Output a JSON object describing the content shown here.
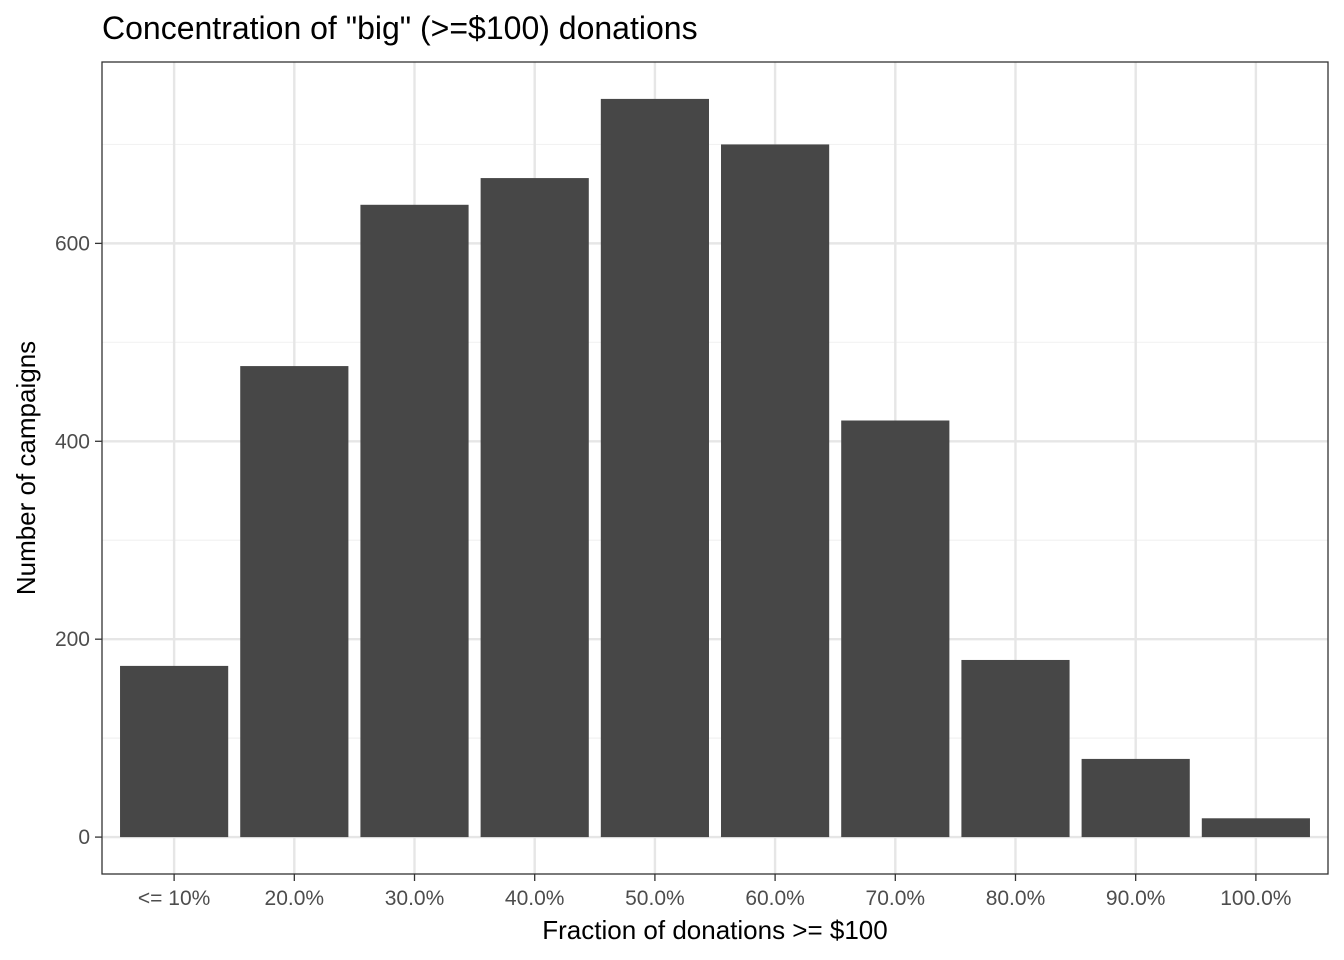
{
  "chart_data": {
    "type": "bar",
    "title": "Concentration of \"big\" (>=$100) donations",
    "xlabel": "Fraction of donations >= $100",
    "ylabel": "Number of campaigns",
    "categories": [
      "<= 10%",
      "20.0%",
      "30.0%",
      "40.0%",
      "50.0%",
      "60.0%",
      "70.0%",
      "80.0%",
      "90.0%",
      "100.0%"
    ],
    "values": [
      173,
      476,
      639,
      666,
      746,
      700,
      421,
      179,
      79,
      19
    ],
    "yticks": [
      0,
      200,
      400,
      600
    ],
    "ylim": [
      -37.3,
      783.3
    ],
    "grid": true,
    "colors": {
      "bar": "#474747",
      "grid_major": "#e6e6e6",
      "grid_minor": "#f2f2f2",
      "panel_border": "#333333",
      "tick_text": "#4d4d4d"
    }
  }
}
